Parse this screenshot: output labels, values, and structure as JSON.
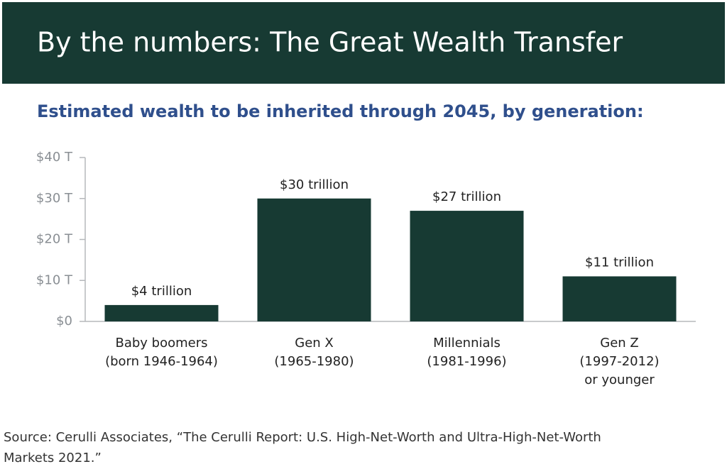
{
  "chart_data": {
    "type": "bar",
    "title": "By the numbers: The Great Wealth Transfer",
    "subtitle": "Estimated wealth to be inherited through 2045, by generation:",
    "categories": [
      [
        "Baby boomers",
        "(born 1946-1964)"
      ],
      [
        "Gen X",
        "(1965-1980)"
      ],
      [
        "Millennials",
        "(1981-1996)"
      ],
      [
        "Gen Z",
        "(1997-2012)",
        "or younger"
      ]
    ],
    "values": [
      4,
      30,
      27,
      11
    ],
    "value_labels": [
      "$4 trillion",
      "$30 trillion",
      "$27 trillion",
      "$11 trillion"
    ],
    "color": "#173a33",
    "ylim": [
      0,
      40
    ],
    "yticks": [
      {
        "value": 0,
        "label": "$0"
      },
      {
        "value": 10,
        "label": "$10 T"
      },
      {
        "value": 20,
        "label": "$20 T"
      },
      {
        "value": 30,
        "label": "$30 T"
      },
      {
        "value": 40,
        "label": "$40 T"
      }
    ],
    "source": [
      "Source: Cerulli Associates, “The Cerulli Report: U.S. High-Net-Worth and Ultra-High-Net-Worth",
      "Markets 2021.”"
    ]
  }
}
